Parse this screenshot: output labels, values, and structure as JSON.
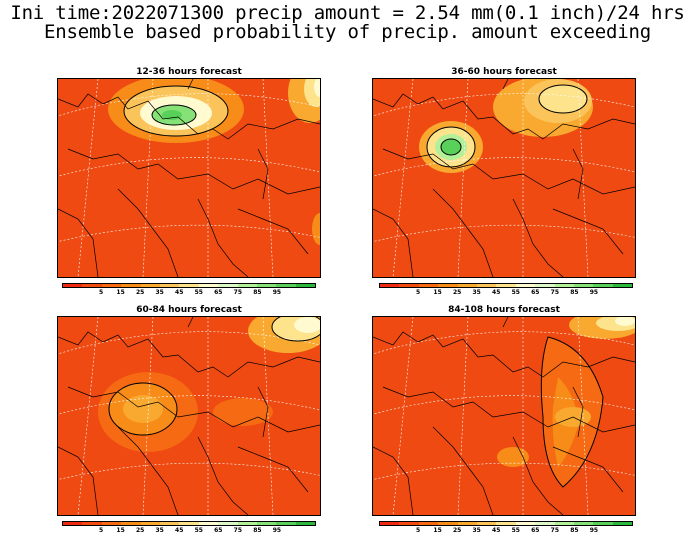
{
  "title_line1": "Ini time:2022071300 precip amount = 2.54 mm(0.1 inch)/24 hrs",
  "title_line2": "Ensemble based probability of precip. amount exceeding",
  "panels": [
    {
      "title": "12-36 hours forecast"
    },
    {
      "title": "36-60 hours forecast"
    },
    {
      "title": "60-84 hours forecast"
    },
    {
      "title": "84-108 hours forecast"
    }
  ],
  "colorbar": {
    "colors": [
      "#ee2a10",
      "#f24a10",
      "#f56a12",
      "#f78c18",
      "#f9a830",
      "#fbc45a",
      "#fde38c",
      "#fffad0",
      "#dcf7c8",
      "#b2f09a",
      "#86e276",
      "#58d05a",
      "#2cb83c"
    ],
    "labels": [
      "5",
      "15",
      "25",
      "35",
      "45",
      "55",
      "65",
      "75",
      "85",
      "95"
    ]
  },
  "colors": {
    "background": "#ee4a12",
    "border_lines": "#000000",
    "graticule": "#ffffff"
  }
}
